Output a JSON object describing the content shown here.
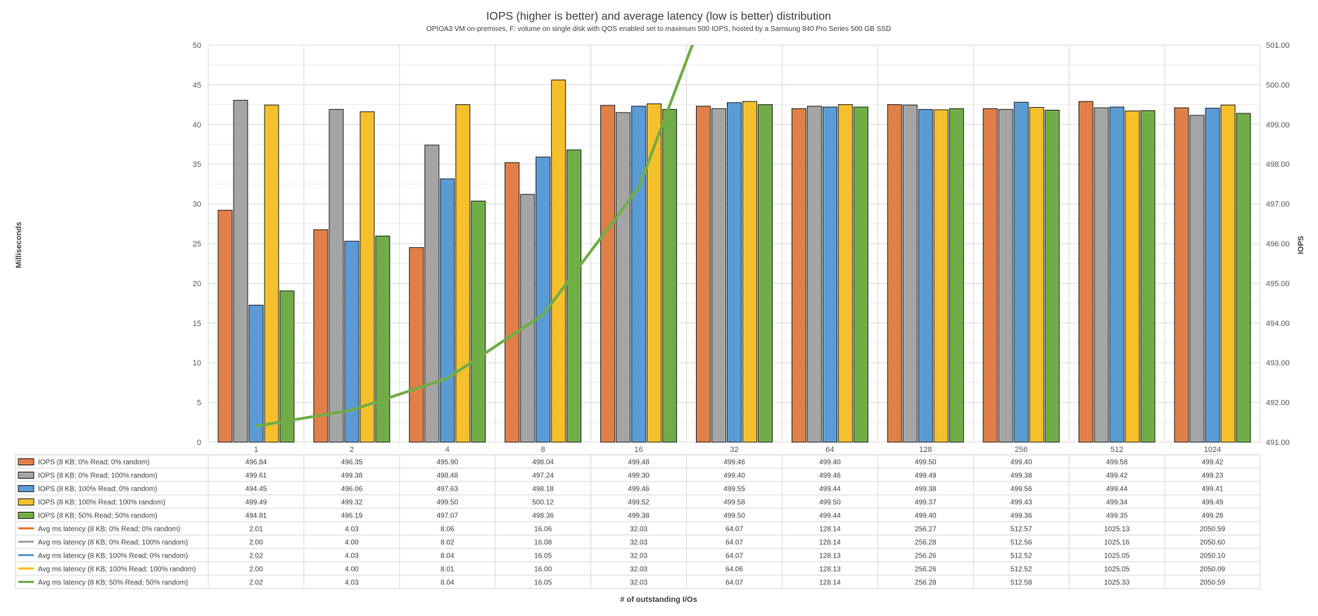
{
  "chart_data": {
    "type": "bar",
    "title": "IOPS (higher is better) and average latency (low is better) distribution",
    "subtitle": "OPIOA3 VM on-premises, F: volume on single disk with QOS enabled set to maximum 500 IOPS, hosted by a Samsung 840 Pro Series 500 GB SSD",
    "xlabel": "# of outstanding I/Os",
    "ylabel_left": "Milliseconds",
    "ylabel_right": "IOPS",
    "left_axis": {
      "min": 0,
      "max": 50,
      "step": 5
    },
    "right_axis": {
      "min": 491,
      "max": 501,
      "step": 1
    },
    "left_tick_labels": [
      "0",
      "5",
      "10",
      "15",
      "20",
      "25",
      "30",
      "35",
      "40",
      "45",
      "50"
    ],
    "right_tick_labels": [
      "491.00",
      "492.00",
      "493.00",
      "494.00",
      "495.00",
      "496.00",
      "497.00",
      "498.00",
      "499.00",
      "500.00",
      "501.00"
    ],
    "categories": [
      "1",
      "2",
      "4",
      "8",
      "16",
      "32",
      "64",
      "128",
      "256",
      "512",
      "1024"
    ],
    "grid": true,
    "legend_position": "data-table",
    "bar_series": [
      {
        "name": "IOPS (8 KB; 0% Read; 0% random)",
        "color": "#E07F48",
        "values": [
          496.84,
          496.35,
          495.9,
          498.04,
          499.48,
          499.46,
          499.4,
          499.5,
          499.4,
          499.58,
          499.42
        ]
      },
      {
        "name": "IOPS (8 KB; 0% Read; 100% random)",
        "color": "#A5A5A5",
        "values": [
          499.61,
          499.38,
          498.48,
          497.24,
          499.3,
          499.4,
          499.46,
          499.49,
          499.38,
          499.42,
          499.23
        ]
      },
      {
        "name": "IOPS (8 KB; 100% Read; 0% random)",
        "color": "#5B9BD5",
        "values": [
          494.45,
          496.06,
          497.63,
          498.18,
          499.46,
          499.55,
          499.44,
          499.38,
          499.56,
          499.44,
          499.41
        ]
      },
      {
        "name": "IOPS (8 KB; 100% Read; 100% random)",
        "color": "#F5C02C",
        "values": [
          499.49,
          499.32,
          499.5,
          500.12,
          499.52,
          499.58,
          499.5,
          499.37,
          499.43,
          499.34,
          499.49
        ]
      },
      {
        "name": "IOPS (8 KB; 50% Read; 50% random)",
        "color": "#70AD47",
        "values": [
          494.81,
          496.19,
          497.07,
          498.36,
          499.38,
          499.5,
          499.44,
          499.4,
          499.36,
          499.35,
          499.28
        ]
      }
    ],
    "line_series": [
      {
        "name": "Avg ms latency (8 KB; 0% Read; 0% random)",
        "color": "#ED7D31",
        "values": [
          2.01,
          4.03,
          8.06,
          16.06,
          32.03,
          64.07,
          128.14,
          256.27,
          512.57,
          1025.13,
          2050.59
        ]
      },
      {
        "name": "Avg ms latency (8 KB; 0% Read; 100% random)",
        "color": "#A5A5A5",
        "values": [
          2.0,
          4.0,
          8.02,
          16.08,
          32.03,
          64.07,
          128.14,
          256.28,
          512.56,
          1025.16,
          2050.6
        ]
      },
      {
        "name": "Avg ms latency (8 KB; 100% Read; 0% random)",
        "color": "#5B9BD5",
        "values": [
          2.02,
          4.03,
          8.04,
          16.05,
          32.03,
          64.07,
          128.13,
          256.26,
          512.52,
          1025.05,
          2050.1
        ]
      },
      {
        "name": "Avg ms latency (8 KB; 100% Read; 100% random)",
        "color": "#FFC000",
        "values": [
          2.0,
          4.0,
          8.01,
          16.0,
          32.03,
          64.06,
          128.13,
          256.26,
          512.52,
          1025.05,
          2050.09
        ]
      },
      {
        "name": "Avg ms latency (8 KB; 50% Read; 50% random)",
        "color": "#70AD47",
        "values": [
          2.02,
          4.03,
          8.04,
          16.05,
          32.03,
          64.07,
          128.14,
          256.28,
          512.58,
          1025.33,
          2050.59
        ]
      }
    ],
    "table_values": [
      [
        "496.84",
        "496.35",
        "495.90",
        "498.04",
        "499.48",
        "499.46",
        "499.40",
        "499.50",
        "499.40",
        "499.58",
        "499.42"
      ],
      [
        "499.61",
        "499.38",
        "498.48",
        "497.24",
        "499.30",
        "499.40",
        "499.46",
        "499.49",
        "499.38",
        "499.42",
        "499.23"
      ],
      [
        "494.45",
        "496.06",
        "497.63",
        "498.18",
        "499.46",
        "499.55",
        "499.44",
        "499.38",
        "499.56",
        "499.44",
        "499.41"
      ],
      [
        "499.49",
        "499.32",
        "499.50",
        "500.12",
        "499.52",
        "499.58",
        "499.50",
        "499.37",
        "499.43",
        "499.34",
        "499.49"
      ],
      [
        "494.81",
        "496.19",
        "497.07",
        "498.36",
        "499.38",
        "499.50",
        "499.44",
        "499.40",
        "499.36",
        "499.35",
        "499.28"
      ],
      [
        "2.01",
        "4.03",
        "8.06",
        "16.06",
        "32.03",
        "64.07",
        "128.14",
        "256.27",
        "512.57",
        "1025.13",
        "2050.59"
      ],
      [
        "2.00",
        "4.00",
        "8.02",
        "16.08",
        "32.03",
        "64.07",
        "128.14",
        "256.28",
        "512.56",
        "1025.16",
        "2050.60"
      ],
      [
        "2.02",
        "4.03",
        "8.04",
        "16.05",
        "32.03",
        "64.07",
        "128.13",
        "256.26",
        "512.52",
        "1025.05",
        "2050.10"
      ],
      [
        "2.00",
        "4.00",
        "8.01",
        "16.00",
        "32.03",
        "64.06",
        "128.13",
        "256.26",
        "512.52",
        "1025.05",
        "2050.09"
      ],
      [
        "2.02",
        "4.03",
        "8.04",
        "16.05",
        "32.03",
        "64.07",
        "128.14",
        "256.28",
        "512.58",
        "1025.33",
        "2050.59"
      ]
    ]
  }
}
